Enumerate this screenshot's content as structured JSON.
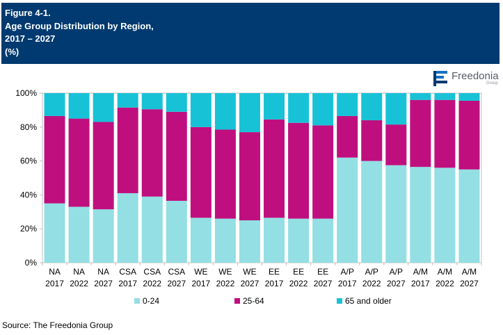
{
  "header": {
    "line1": "Figure 4-1.",
    "line2": "Age Group Distribution by Region,",
    "line3": "2017 – 2027",
    "line4": "(%)"
  },
  "logo": {
    "name": "Freedonia",
    "sub": "Group"
  },
  "colors": {
    "c0_24": "#93dfe3",
    "c25_64": "#bf0f7e",
    "c65": "#18c2d6",
    "header": "#003a70"
  },
  "chart_data": {
    "type": "bar",
    "stacked": true,
    "title": "Age Group Distribution by Region, 2017 – 2027 (%)",
    "categories": [
      [
        "NA",
        "2017"
      ],
      [
        "NA",
        "2022"
      ],
      [
        "NA",
        "2027"
      ],
      [
        "CSA",
        "2017"
      ],
      [
        "CSA",
        "2022"
      ],
      [
        "CSA",
        "2027"
      ],
      [
        "WE",
        "2017"
      ],
      [
        "WE",
        "2022"
      ],
      [
        "WE",
        "2027"
      ],
      [
        "EE",
        "2017"
      ],
      [
        "EE",
        "2022"
      ],
      [
        "EE",
        "2027"
      ],
      [
        "A/P",
        "2017"
      ],
      [
        "A/P",
        "2022"
      ],
      [
        "A/P",
        "2027"
      ],
      [
        "A/M",
        "2017"
      ],
      [
        "A/M",
        "2022"
      ],
      [
        "A/M",
        "2027"
      ]
    ],
    "series": [
      {
        "name": "0-24",
        "color": "#93dfe3",
        "values": [
          35,
          33,
          31.5,
          41,
          39,
          36.5,
          26.5,
          26,
          25,
          26.5,
          26,
          26,
          62,
          60,
          57.5,
          56.5,
          56,
          55
        ]
      },
      {
        "name": "25-64",
        "color": "#bf0f7e",
        "values": [
          51.5,
          52,
          51.5,
          50.5,
          51.5,
          52.5,
          53.5,
          52.5,
          52,
          58,
          56.5,
          55,
          24.5,
          24,
          24,
          39.5,
          40,
          40.5
        ]
      },
      {
        "name": "65 and older",
        "color": "#18c2d6",
        "values": [
          13.5,
          15,
          17,
          8.5,
          9.5,
          11,
          20,
          21.5,
          23,
          15.5,
          17.5,
          19,
          13.5,
          16,
          18.5,
          4,
          4,
          4.5
        ]
      }
    ],
    "y_ticks": [
      "0%",
      "20%",
      "40%",
      "60%",
      "80%",
      "100%"
    ],
    "ylim": [
      0,
      100
    ],
    "grid": false,
    "legend_position": "bottom"
  },
  "legend": {
    "item1": "0-24",
    "item2": "25-64",
    "item3": "65 and older"
  },
  "source": "Source: The Freedonia Group"
}
